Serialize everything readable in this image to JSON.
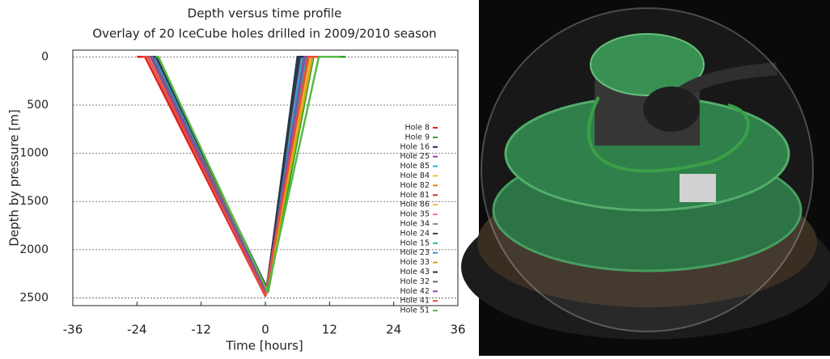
{
  "chart_data": {
    "type": "line",
    "title": "Depth versus time profile",
    "subtitle": "Overlay of 20 IceCube holes drilled in 2009/2010 season",
    "x_label": "Time [hours]",
    "y_label": "Depth by pressure [m]",
    "xlim": [
      -36,
      36
    ],
    "xticks": [
      -36,
      -24,
      -12,
      0,
      12,
      24,
      36
    ],
    "ylim": [
      2580,
      -70
    ],
    "yticks": [
      0,
      500,
      1000,
      1500,
      2000,
      2500
    ],
    "grid": true,
    "legend": "right",
    "series": [
      {
        "name": "Hole 8",
        "color": "#e41a1c",
        "x": [
          -24,
          -22.5,
          0,
          7.5,
          11
        ],
        "values": [
          0,
          0,
          2480,
          0,
          0
        ]
      },
      {
        "name": "Hole 9",
        "color": "#2ca02c",
        "x": [
          -22,
          -21,
          0.5,
          9,
          15
        ],
        "values": [
          0,
          0,
          2440,
          0,
          0
        ]
      },
      {
        "name": "Hole 16",
        "color": "#1f2a5a",
        "x": [
          -21.5,
          -20.8,
          0.2,
          6.5,
          8
        ],
        "values": [
          0,
          0,
          2400,
          0,
          0
        ]
      },
      {
        "name": "Hole 25",
        "color": "#8e44ad",
        "x": [
          -22,
          -21,
          0.3,
          7,
          9
        ],
        "values": [
          0,
          0,
          2450,
          0,
          0
        ]
      },
      {
        "name": "Hole 85",
        "color": "#17becf",
        "x": [
          -21,
          -20.5,
          0.1,
          7.5,
          9
        ],
        "values": [
          0,
          0,
          2430,
          0,
          0
        ]
      },
      {
        "name": "Hole 84",
        "color": "#f1c40f",
        "x": [
          -20.5,
          -20,
          0.2,
          8,
          10
        ],
        "values": [
          0,
          0,
          2460,
          0,
          0
        ]
      },
      {
        "name": "Hole 82",
        "color": "#e67e22",
        "x": [
          -21,
          -20.2,
          0,
          8.2,
          10
        ],
        "values": [
          0,
          0,
          2470,
          0,
          0
        ]
      },
      {
        "name": "Hole 81",
        "color": "#c0392b",
        "x": [
          -22.5,
          -21.5,
          0,
          7.8,
          9.5
        ],
        "values": [
          0,
          0,
          2455,
          0,
          0
        ]
      },
      {
        "name": "Hole 86",
        "color": "#f5b041",
        "x": [
          -20.8,
          -20,
          0.3,
          8.5,
          10
        ],
        "values": [
          0,
          0,
          2440,
          0,
          0
        ]
      },
      {
        "name": "Hole 35",
        "color": "#ff69b4",
        "x": [
          -22,
          -21.2,
          0.1,
          7.2,
          9
        ],
        "values": [
          0,
          0,
          2460,
          0,
          0
        ]
      },
      {
        "name": "Hole 34",
        "color": "#7f8c8d",
        "x": [
          -21.8,
          -21,
          0.2,
          6.8,
          8.5
        ],
        "values": [
          0,
          0,
          2420,
          0,
          0
        ]
      },
      {
        "name": "Hole 24",
        "color": "#2e4053",
        "x": [
          -21.2,
          -20.6,
          0.4,
          6.2,
          8
        ],
        "values": [
          0,
          0,
          2410,
          0,
          0
        ]
      },
      {
        "name": "Hole 15",
        "color": "#1abc9c",
        "x": [
          -21.6,
          -20.9,
          0,
          7.6,
          9.2
        ],
        "values": [
          0,
          0,
          2450,
          0,
          0
        ]
      },
      {
        "name": "Hole 23",
        "color": "#3498db",
        "x": [
          -21.4,
          -20.7,
          0.2,
          7,
          9
        ],
        "values": [
          0,
          0,
          2440,
          0,
          0
        ]
      },
      {
        "name": "Hole 33",
        "color": "#d4ac0d",
        "x": [
          -20.6,
          -20,
          0.1,
          8.8,
          10.5
        ],
        "values": [
          0,
          0,
          2450,
          0,
          0
        ]
      },
      {
        "name": "Hole 43",
        "color": "#273746",
        "x": [
          -21,
          -20.4,
          0.3,
          6,
          7.5
        ],
        "values": [
          0,
          0,
          2400,
          0,
          0
        ]
      },
      {
        "name": "Hole 32",
        "color": "#5d6d7e",
        "x": [
          -21.9,
          -21.1,
          0.2,
          7.3,
          9
        ],
        "values": [
          0,
          0,
          2430,
          0,
          0
        ]
      },
      {
        "name": "Hole 42",
        "color": "#884ea0",
        "x": [
          -22.2,
          -21.4,
          0.1,
          7.4,
          9
        ],
        "values": [
          0,
          0,
          2445,
          0,
          0
        ]
      },
      {
        "name": "Hole 41",
        "color": "#e74c3c",
        "x": [
          -23,
          -22,
          0,
          8,
          10
        ],
        "values": [
          0,
          0,
          2470,
          0,
          0
        ]
      },
      {
        "name": "Hole 51",
        "color": "#58b947",
        "x": [
          -20.5,
          -20,
          0.4,
          10,
          14
        ],
        "values": [
          0,
          0,
          2430,
          0,
          0
        ]
      }
    ]
  }
}
